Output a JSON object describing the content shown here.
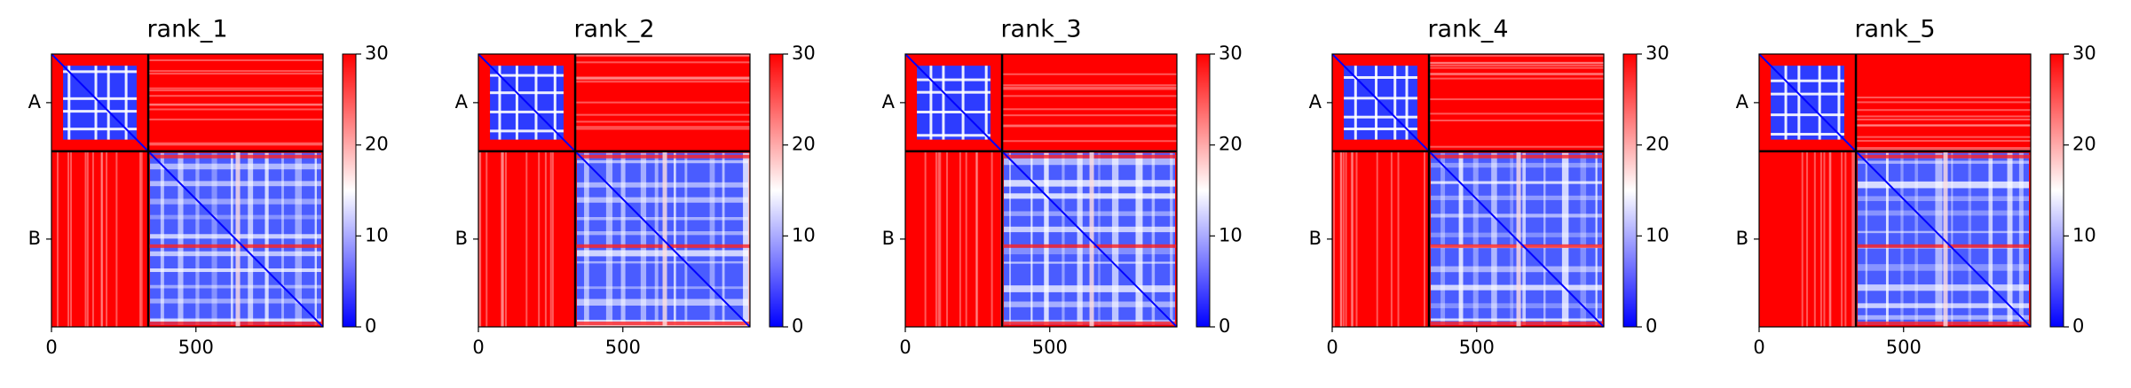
{
  "chart_data": [
    {
      "type": "heatmap",
      "title": "rank_1",
      "xlim": [
        0,
        940
      ],
      "ylim": [
        940,
        0
      ],
      "xticks": [
        0,
        500
      ],
      "categories": [
        "A",
        "B"
      ],
      "boundaries": [
        335
      ],
      "colorbar": {
        "lim": [
          0,
          30
        ],
        "ticks": [
          0,
          10,
          20,
          30
        ],
        "colors": [
          "#0000ff",
          "#ffffff",
          "#ff0000"
        ]
      }
    },
    {
      "type": "heatmap",
      "title": "rank_2",
      "xlim": [
        0,
        940
      ],
      "ylim": [
        940,
        0
      ],
      "xticks": [
        0,
        500
      ],
      "categories": [
        "A",
        "B"
      ],
      "boundaries": [
        335
      ],
      "colorbar": {
        "lim": [
          0,
          30
        ],
        "ticks": [
          0,
          10,
          20,
          30
        ],
        "colors": [
          "#0000ff",
          "#ffffff",
          "#ff0000"
        ]
      }
    },
    {
      "type": "heatmap",
      "title": "rank_3",
      "xlim": [
        0,
        940
      ],
      "ylim": [
        940,
        0
      ],
      "xticks": [
        0,
        500
      ],
      "categories": [
        "A",
        "B"
      ],
      "boundaries": [
        335
      ],
      "colorbar": {
        "lim": [
          0,
          30
        ],
        "ticks": [
          0,
          10,
          20,
          30
        ],
        "colors": [
          "#0000ff",
          "#ffffff",
          "#ff0000"
        ]
      }
    },
    {
      "type": "heatmap",
      "title": "rank_4",
      "xlim": [
        0,
        940
      ],
      "ylim": [
        940,
        0
      ],
      "xticks": [
        0,
        500
      ],
      "categories": [
        "A",
        "B"
      ],
      "boundaries": [
        335
      ],
      "colorbar": {
        "lim": [
          0,
          30
        ],
        "ticks": [
          0,
          10,
          20,
          30
        ],
        "colors": [
          "#0000ff",
          "#ffffff",
          "#ff0000"
        ]
      }
    },
    {
      "type": "heatmap",
      "title": "rank_5",
      "xlim": [
        0,
        940
      ],
      "ylim": [
        940,
        0
      ],
      "xticks": [
        0,
        500
      ],
      "categories": [
        "A",
        "B"
      ],
      "boundaries": [
        335
      ],
      "colorbar": {
        "lim": [
          0,
          30
        ],
        "ticks": [
          0,
          10,
          20,
          30
        ],
        "colors": [
          "#0000ff",
          "#ffffff",
          "#ff0000"
        ]
      }
    }
  ]
}
